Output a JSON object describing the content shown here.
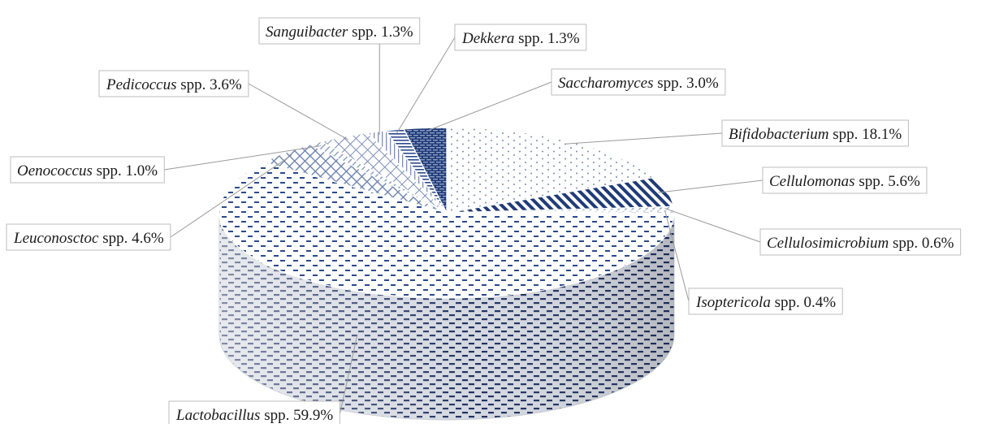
{
  "chart_data": {
    "type": "pie",
    "style": "3d",
    "unit": "%",
    "slices": [
      {
        "genus": "Bifidobacterium",
        "suffix": "spp. 18.1%",
        "value": 18.1,
        "pattern": "dots",
        "color": "#b9c3d6"
      },
      {
        "genus": "Cellulomonas",
        "suffix": "spp. 5.6%",
        "value": 5.6,
        "pattern": "diag-dark",
        "color": "#1f3b78"
      },
      {
        "genus": "Cellulosimicrobium",
        "suffix": "spp. 0.6%",
        "value": 0.6,
        "pattern": "light-hatch",
        "color": "#8ea0c4"
      },
      {
        "genus": "Isoptericola",
        "suffix": "spp. 0.4%",
        "value": 0.4,
        "pattern": "light-hatch",
        "color": "#8ea0c4"
      },
      {
        "genus": "Lactobacillus",
        "suffix": "spp. 59.9%",
        "value": 59.9,
        "pattern": "dashes",
        "color": "#2b4a8c"
      },
      {
        "genus": "Leuconosctoc",
        "suffix": "spp. 4.6%",
        "value": 4.6,
        "pattern": "cross",
        "color": "#6f84b0"
      },
      {
        "genus": "Oenococcus",
        "suffix": "spp. 1.0%",
        "value": 1.0,
        "pattern": "light-hatch",
        "color": "#8ea0c4"
      },
      {
        "genus": "Pedicoccus",
        "suffix": "spp. 3.6%",
        "value": 3.6,
        "pattern": "grid",
        "color": "#7c8fb8"
      },
      {
        "genus": "Sanguibacter",
        "suffix": "spp. 1.3%",
        "value": 1.3,
        "pattern": "vlines",
        "color": "#7c8fb8"
      },
      {
        "genus": "Dekkera",
        "suffix": "spp. 1.3%",
        "value": 1.3,
        "pattern": "hlines",
        "color": "#2b4a8c"
      },
      {
        "genus": "Saccharomyces",
        "suffix": "spp. 3.0%",
        "value": 3.0,
        "pattern": "bricks",
        "color": "#1f3b78"
      }
    ],
    "legend": "none (leader-line labels)"
  }
}
